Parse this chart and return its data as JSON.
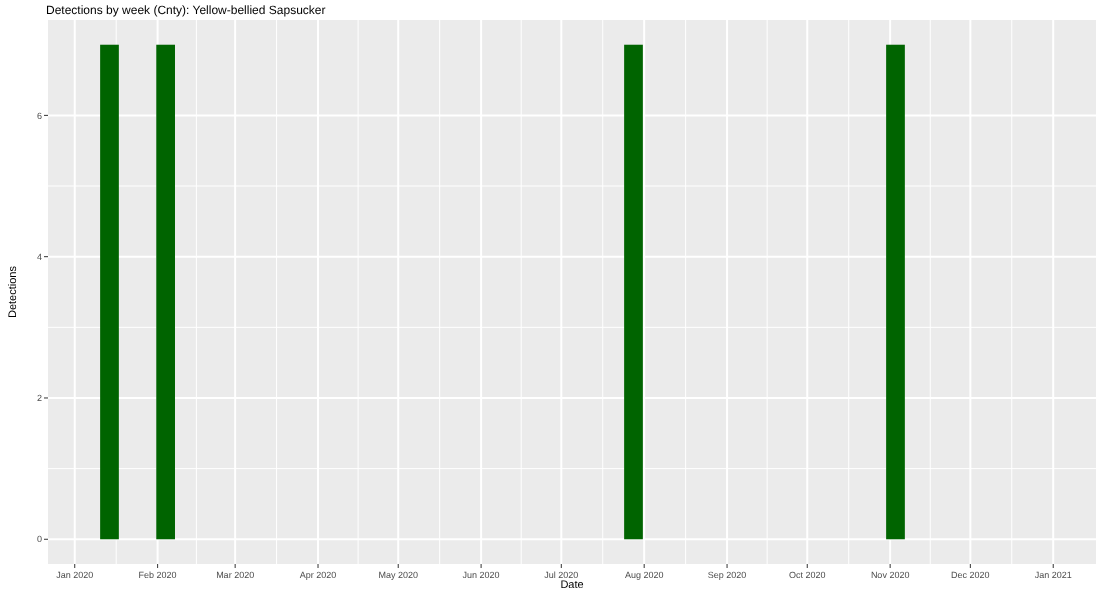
{
  "chart_data": {
    "type": "bar",
    "title": "Detections by week (Cnty): Yellow-bellied Sapsucker",
    "xlabel": "Date",
    "ylabel": "Detections",
    "x": [
      "2020-01-14",
      "2020-02-04",
      "2020-07-28",
      "2020-11-03"
    ],
    "values": [
      7,
      7,
      7,
      7
    ],
    "color": "#006400",
    "xlim": [
      "2019-12-22",
      "2021-01-17"
    ],
    "xticks": [
      {
        "value": "2020-01-01",
        "label": "Jan 2020"
      },
      {
        "value": "2020-02-01",
        "label": "Feb 2020"
      },
      {
        "value": "2020-03-01",
        "label": "Mar 2020"
      },
      {
        "value": "2020-04-01",
        "label": "Apr 2020"
      },
      {
        "value": "2020-05-01",
        "label": "May 2020"
      },
      {
        "value": "2020-06-01",
        "label": "Jun 2020"
      },
      {
        "value": "2020-07-01",
        "label": "Jul 2020"
      },
      {
        "value": "2020-08-01",
        "label": "Aug 2020"
      },
      {
        "value": "2020-09-01",
        "label": "Sep 2020"
      },
      {
        "value": "2020-10-01",
        "label": "Oct 2020"
      },
      {
        "value": "2020-11-01",
        "label": "Nov 2020"
      },
      {
        "value": "2020-12-01",
        "label": "Dec 2020"
      },
      {
        "value": "2021-01-01",
        "label": "Jan 2021"
      }
    ],
    "ylim": [
      -0.35,
      7.35
    ],
    "yticks": [
      0,
      2,
      4,
      6
    ],
    "grid": true
  }
}
